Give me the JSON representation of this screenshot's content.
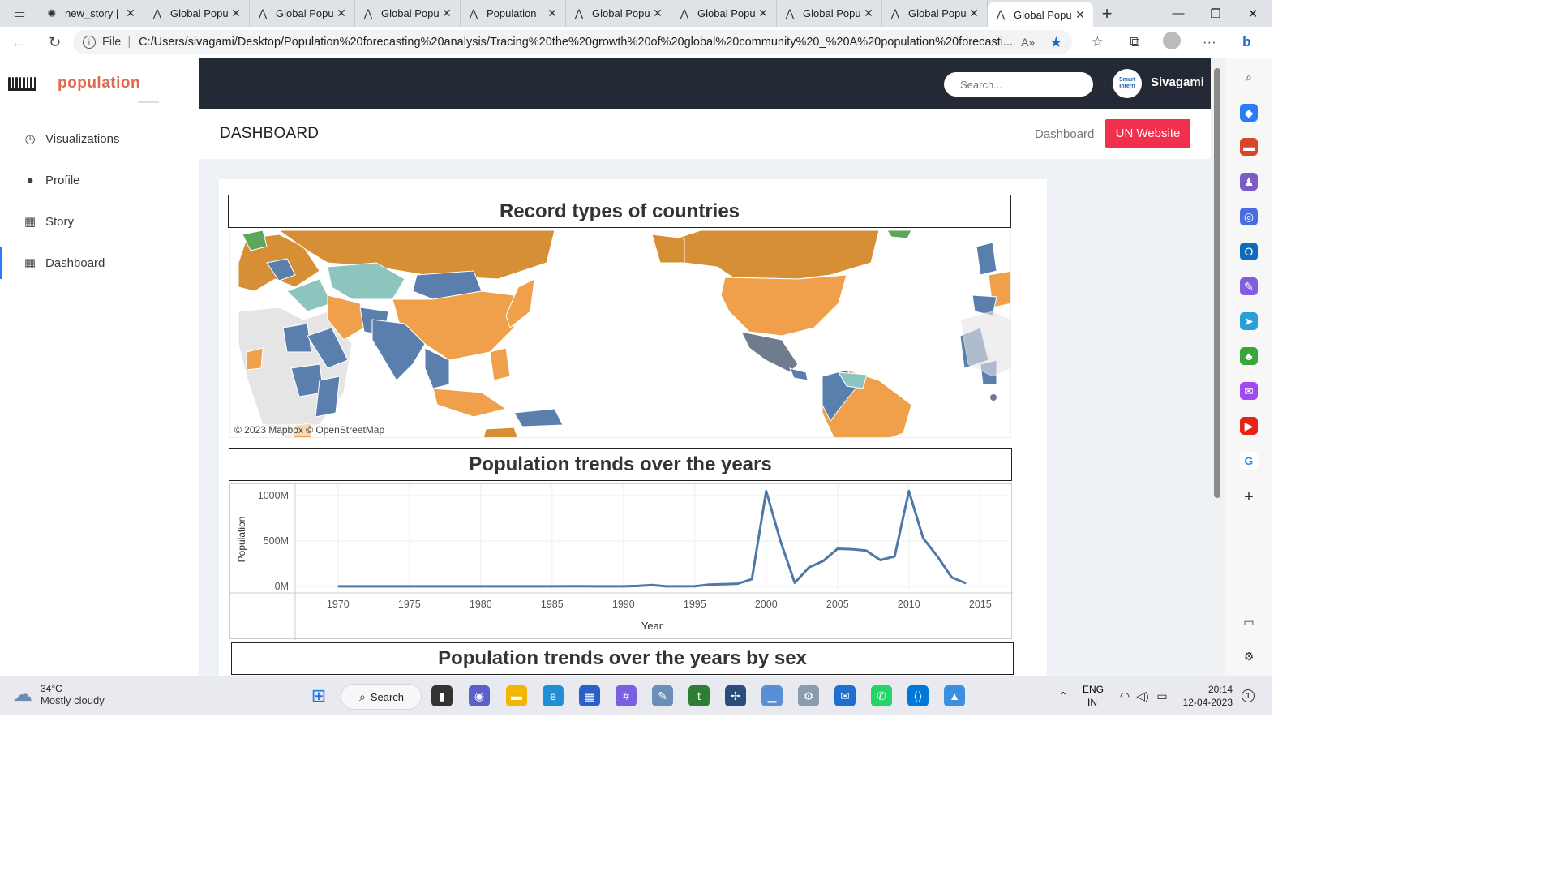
{
  "browser": {
    "tabs": [
      {
        "title": "new_story |",
        "active": false
      },
      {
        "title": "Global Popu",
        "active": false
      },
      {
        "title": "Global Popu",
        "active": false
      },
      {
        "title": "Global Popu",
        "active": false
      },
      {
        "title": "Population",
        "active": false
      },
      {
        "title": "Global Popu",
        "active": false
      },
      {
        "title": "Global Popu",
        "active": false
      },
      {
        "title": "Global Popu",
        "active": false
      },
      {
        "title": "Global Popu",
        "active": false
      },
      {
        "title": "Global Popu",
        "active": true
      }
    ],
    "new_tab": "+",
    "file_label": "File",
    "url": "C:/Users/sivagami/Desktop/Population%20forecasting%20analysis/Tracing%20the%20growth%20of%20global%20community%20_%20A%20population%20forecasti..."
  },
  "app": {
    "logo_text": "population",
    "search_placeholder": "Search...",
    "user_name": "Sivagami",
    "avatar_text": "Smart Intern"
  },
  "sidebar": {
    "items": [
      {
        "label": "Visualizations",
        "icon": "clock-icon"
      },
      {
        "label": "Profile",
        "icon": "user-icon"
      },
      {
        "label": "Story",
        "icon": "table-icon"
      },
      {
        "label": "Dashboard",
        "icon": "table-icon",
        "active": true
      }
    ]
  },
  "header": {
    "title": "DASHBOARD",
    "breadcrumb": "Dashboard",
    "button_label": "UN Website",
    "button_color": "#f0304c"
  },
  "map": {
    "title": "Record types of countries",
    "credit": "© 2023 Mapbox  © OpenStreetMap",
    "legend_colors": [
      "#f0a04b",
      "#5b7fad",
      "#8cc5bd",
      "#d68f35",
      "#5da65a",
      "#6e7c8e"
    ]
  },
  "chart_data": {
    "type": "line",
    "title": "Population trends over the years",
    "xlabel": "Year",
    "ylabel": "Population",
    "xlim": [
      1967,
      2017
    ],
    "ylim": [
      0,
      1000
    ],
    "x_ticks": [
      1970,
      1975,
      1980,
      1985,
      1990,
      1995,
      2000,
      2005,
      2010,
      2015
    ],
    "y_ticks": [
      0,
      500,
      1000
    ],
    "y_tick_labels": [
      "0M",
      "500M",
      "1000M"
    ],
    "series_color": "#4e79a7",
    "x": [
      1970,
      1975,
      1980,
      1985,
      1987,
      1988,
      1990,
      1991,
      1992,
      1993,
      1995,
      1996,
      1997,
      1998,
      1999,
      2000,
      2001,
      2002,
      2003,
      2004,
      2005,
      2006,
      2007,
      2008,
      2009,
      2010,
      2011,
      2012,
      2013,
      2014
    ],
    "y": [
      1,
      1,
      1,
      1,
      3,
      1,
      1,
      5,
      15,
      1,
      2,
      20,
      25,
      30,
      80,
      1050,
      500,
      40,
      210,
      280,
      415,
      410,
      395,
      290,
      330,
      1050,
      530,
      330,
      100,
      35
    ]
  },
  "next_section": {
    "title": "Population trends over the years by sex"
  },
  "taskbar": {
    "temp": "34°C",
    "weather": "Mostly cloudy",
    "search_label": "Search",
    "lang_1": "ENG",
    "lang_2": "IN",
    "time": "20:14",
    "date": "12-04-2023",
    "notif_count": "1"
  }
}
